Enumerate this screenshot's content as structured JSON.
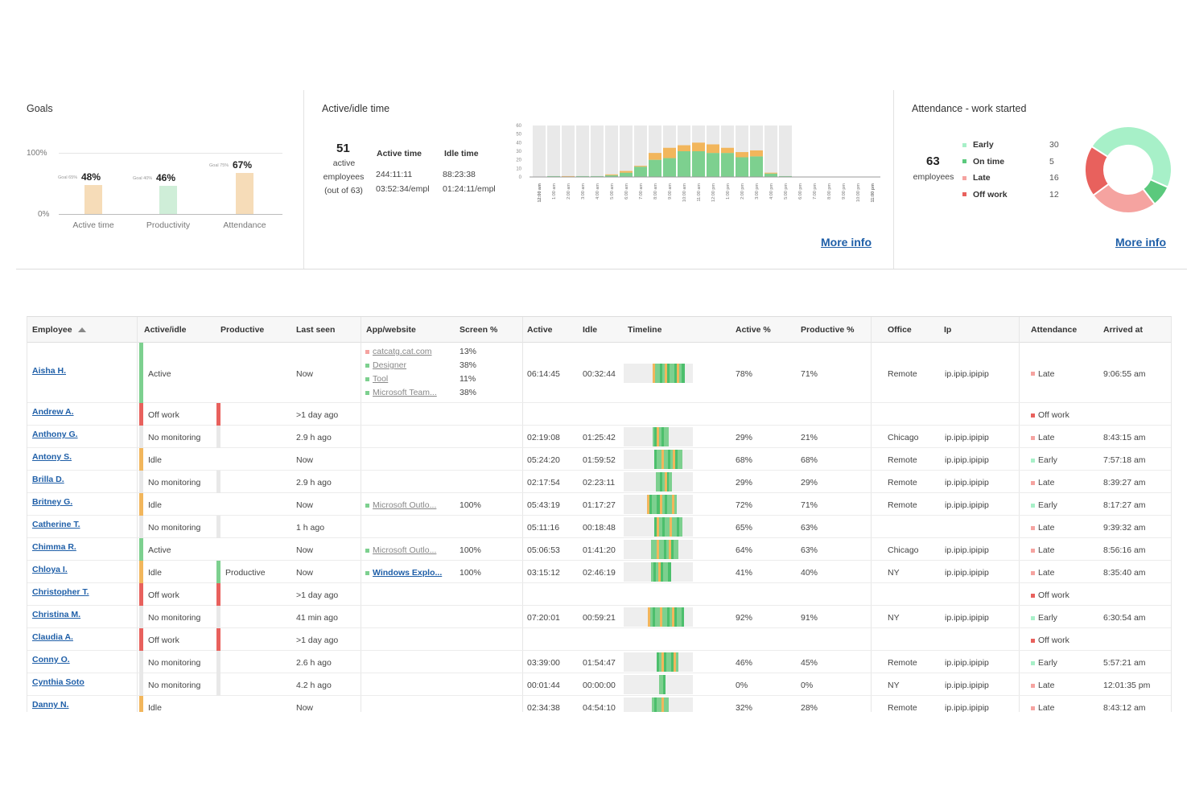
{
  "colors": {
    "active": "#7dd08f",
    "idle": "#f2b65c",
    "offwork": "#e8615d",
    "nomonitor": "#e8e8e8",
    "link": "#1f5fa8",
    "early": "#a7f0c8",
    "ontime": "#5bc97d",
    "late": "#f5a3a0",
    "off": "#e8615d"
  },
  "goals": {
    "title": "Goals",
    "y_labels": [
      "100%",
      "0%"
    ],
    "bars": [
      {
        "category": "Active time",
        "value_label": "48%",
        "goal_label": "Goal 65%",
        "value": 48,
        "color": "#f6dcb8"
      },
      {
        "category": "Productivity",
        "value_label": "46%",
        "goal_label": "Goal 40%",
        "value": 46,
        "color": "#cfeed8"
      },
      {
        "category": "Attendance",
        "value_label": "67%",
        "goal_label": "Goal 75%",
        "value": 67,
        "color": "#f6dcb8"
      }
    ]
  },
  "active_idle": {
    "title": "Active/idle time",
    "active_count": "51",
    "active_label": "active",
    "employees_label": "employees",
    "out_of_label": "(out of 63)",
    "active_time_header": "Active time",
    "idle_time_header": "Idle time",
    "active_total": "244:11:11",
    "idle_total": "88:23:38",
    "active_per_empl": "03:52:34/empl",
    "idle_per_empl": "01:24:11/empl",
    "more_info": "More info"
  },
  "chart_data": {
    "type": "bar",
    "stacked": true,
    "ylim": [
      0,
      60
    ],
    "y_ticks": [
      "60",
      "50",
      "40",
      "30",
      "20",
      "10",
      "0"
    ],
    "categories": [
      "12:00 am",
      "1:00 am",
      "2:00 am",
      "3:00 am",
      "4:00 am",
      "5:00 am",
      "6:00 am",
      "7:00 am",
      "8:00 am",
      "9:00 am",
      "10:00 am",
      "11:00 am",
      "12:00 pm",
      "1:00 pm",
      "2:00 pm",
      "3:00 pm",
      "4:00 pm",
      "5:00 pm",
      "6:00 pm",
      "7:00 pm",
      "8:00 pm",
      "9:00 pm",
      "10:00 pm",
      "11:00 pm"
    ],
    "series": [
      {
        "values": [
          0,
          1,
          0,
          1,
          1,
          2,
          5,
          12,
          20,
          22,
          30,
          30,
          28,
          28,
          23,
          24,
          4,
          1,
          0,
          0,
          0,
          0,
          0,
          0
        ]
      },
      {
        "values": [
          0,
          0,
          1,
          0,
          0,
          1,
          2,
          1,
          8,
          12,
          7,
          10,
          10,
          6,
          6,
          7,
          1,
          0,
          0,
          0,
          0,
          0,
          0,
          0
        ]
      }
    ],
    "shaded_hours_end": 17
  },
  "attendance": {
    "title": "Attendance - work started",
    "total": "63",
    "employees_label": "employees",
    "legend": [
      {
        "label": "Early",
        "count": "30",
        "value": 30,
        "color": "#a7f0c8"
      },
      {
        "label": "On time",
        "count": "5",
        "value": 5,
        "color": "#5bc97d"
      },
      {
        "label": "Late",
        "count": "16",
        "value": 16,
        "color": "#f5a3a0"
      },
      {
        "label": "Off work",
        "count": "12",
        "value": 12,
        "color": "#e8615d"
      }
    ],
    "more_info": "More info"
  },
  "table": {
    "headers": {
      "employee": "Employee",
      "activeidle": "Active/idle",
      "productive": "Productive",
      "lastseen": "Last seen",
      "app": "App/website",
      "screen": "Screen %",
      "active": "Active",
      "idle": "Idle",
      "timeline": "Timeline",
      "activepct": "Active %",
      "productivepct": "Productive %",
      "office": "Office",
      "ip": "Ip",
      "attendance": "Attendance",
      "arrived": "Arrived at"
    },
    "rows": [
      {
        "name": "Aisha H.",
        "status": "Active",
        "productive": "",
        "lastseen": "Now",
        "apps": [
          {
            "name": "catcatg.cat.com",
            "pct": "13%"
          },
          {
            "name": "Designer",
            "pct": "38%"
          },
          {
            "name": "Tool",
            "pct": "11%"
          },
          {
            "name": "Microsoft Team...",
            "pct": "38%"
          }
        ],
        "active": "06:14:45",
        "idle": "00:32:44",
        "activepct": "78%",
        "productivepct": "71%",
        "office": "Remote",
        "ip": "ip.ipip.ipipip",
        "attendance": "Late",
        "arrived": "9:06:55 am"
      },
      {
        "name": "Andrew A.",
        "status": "Off work",
        "productive": "",
        "lastseen": ">1 day ago",
        "apps": [],
        "active": "",
        "idle": "",
        "activepct": "",
        "productivepct": "",
        "office": "",
        "ip": "",
        "attendance": "Off work",
        "arrived": ""
      },
      {
        "name": "Anthony G.",
        "status": "No monitoring",
        "productive": "",
        "lastseen": "2.9 h ago",
        "apps": [],
        "active": "02:19:08",
        "idle": "01:25:42",
        "activepct": "29%",
        "productivepct": "21%",
        "office": "Chicago",
        "ip": "ip.ipip.ipipip",
        "attendance": "Late",
        "arrived": "8:43:15 am"
      },
      {
        "name": "Antony S.",
        "status": "Idle",
        "productive": "",
        "lastseen": "Now",
        "apps": [],
        "active": "05:24:20",
        "idle": "01:59:52",
        "activepct": "68%",
        "productivepct": "68%",
        "office": "Remote",
        "ip": "ip.ipip.ipipip",
        "attendance": "Early",
        "arrived": "7:57:18 am"
      },
      {
        "name": "Brilla D.",
        "status": "No monitoring",
        "productive": "",
        "lastseen": "2.9 h ago",
        "apps": [],
        "active": "02:17:54",
        "idle": "02:23:11",
        "activepct": "29%",
        "productivepct": "29%",
        "office": "Remote",
        "ip": "ip.ipip.ipipip",
        "attendance": "Late",
        "arrived": "8:39:27 am"
      },
      {
        "name": "Britney G.",
        "status": "Idle",
        "productive": "",
        "lastseen": "Now",
        "apps": [
          {
            "name": "Microsoft Outlo...",
            "pct": "100%"
          }
        ],
        "active": "05:43:19",
        "idle": "01:17:27",
        "activepct": "72%",
        "productivepct": "71%",
        "office": "Remote",
        "ip": "ip.ipip.ipipip",
        "attendance": "Early",
        "arrived": "8:17:27 am"
      },
      {
        "name": "Catherine T.",
        "status": "No monitoring",
        "productive": "",
        "lastseen": "1 h ago",
        "apps": [],
        "active": "05:11:16",
        "idle": "00:18:48",
        "activepct": "65%",
        "productivepct": "63%",
        "office": "",
        "ip": "",
        "attendance": "Late",
        "arrived": "9:39:32 am"
      },
      {
        "name": "Chimma R.",
        "status": "Active",
        "productive": "",
        "lastseen": "Now",
        "apps": [
          {
            "name": "Microsoft Outlo...",
            "pct": "100%"
          }
        ],
        "active": "05:06:53",
        "idle": "01:41:20",
        "activepct": "64%",
        "productivepct": "63%",
        "office": "Chicago",
        "ip": "ip.ipip.ipipip",
        "attendance": "Late",
        "arrived": "8:56:16 am"
      },
      {
        "name": "Chloya I.",
        "status": "Idle",
        "productive": "Productive",
        "lastseen": "Now",
        "apps": [
          {
            "name": "Windows Explo...",
            "pct": "100%",
            "bold": true
          }
        ],
        "active": "03:15:12",
        "idle": "02:46:19",
        "activepct": "41%",
        "productivepct": "40%",
        "office": "NY",
        "ip": "ip.ipip.ipipip",
        "attendance": "Late",
        "arrived": "8:35:40 am"
      },
      {
        "name": "Christopher T.",
        "status": "Off work",
        "productive": "",
        "lastseen": ">1 day ago",
        "apps": [],
        "active": "",
        "idle": "",
        "activepct": "",
        "productivepct": "",
        "office": "",
        "ip": "",
        "attendance": "Off work",
        "arrived": ""
      },
      {
        "name": "Christina M.",
        "status": "No monitoring",
        "productive": "",
        "lastseen": "41 min ago",
        "apps": [],
        "active": "07:20:01",
        "idle": "00:59:21",
        "activepct": "92%",
        "productivepct": "91%",
        "office": "NY",
        "ip": "ip.ipip.ipipip",
        "attendance": "Early",
        "arrived": "6:30:54 am"
      },
      {
        "name": "Claudia A.",
        "status": "Off work",
        "productive": "",
        "lastseen": ">1 day ago",
        "apps": [],
        "active": "",
        "idle": "",
        "activepct": "",
        "productivepct": "",
        "office": "",
        "ip": "",
        "attendance": "Off work",
        "arrived": ""
      },
      {
        "name": "Conny O.",
        "status": "No monitoring",
        "productive": "",
        "lastseen": "2.6 h ago",
        "apps": [],
        "active": "03:39:00",
        "idle": "01:54:47",
        "activepct": "46%",
        "productivepct": "45%",
        "office": "Remote",
        "ip": "ip.ipip.ipipip",
        "attendance": "Early",
        "arrived": "5:57:21 am"
      },
      {
        "name": "Cynthia Soto",
        "status": "No monitoring",
        "productive": "",
        "lastseen": "4.2 h ago",
        "apps": [],
        "active": "00:01:44",
        "idle": "00:00:00",
        "activepct": "0%",
        "productivepct": "0%",
        "office": "NY",
        "ip": "ip.ipip.ipipip",
        "attendance": "Late",
        "arrived": "12:01:35 pm"
      },
      {
        "name": "Danny N.",
        "status": "Idle",
        "productive": "",
        "lastseen": "Now",
        "apps": [],
        "active": "02:34:38",
        "idle": "04:54:10",
        "activepct": "32%",
        "productivepct": "28%",
        "office": "Remote",
        "ip": "ip.ipip.ipipip",
        "attendance": "Late",
        "arrived": "8:43:12 am"
      }
    ]
  }
}
